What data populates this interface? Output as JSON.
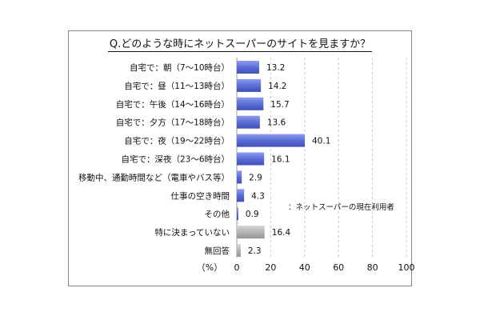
{
  "chart_data": {
    "type": "bar",
    "orientation": "horizontal",
    "title": "Q.どのような時にネットスーパーのサイトを見ますか？",
    "categories": [
      "自宅で：朝（7〜10時台）",
      "自宅で：昼（11〜13時台）",
      "自宅で：午後（14〜16時台）",
      "自宅で：夕方（17〜18時台）",
      "自宅で：夜（19〜22時台）",
      "自宅で：深夜（23〜6時台）",
      "移動中、通勤時間など（電車やバス等）",
      "仕事の空き時間",
      "その他",
      "特に決まっていない",
      "無回答"
    ],
    "values": [
      13.2,
      14.2,
      15.7,
      13.6,
      40.1,
      16.1,
      2.9,
      4.3,
      0.9,
      16.4,
      2.3
    ],
    "value_labels": [
      "13.2",
      "14.2",
      "15.7",
      "13.6",
      "40.1",
      "16.1",
      "2.9",
      "4.3",
      "0.9",
      "16.4",
      "2.3"
    ],
    "bar_group": [
      "user",
      "user",
      "user",
      "user",
      "user",
      "user",
      "user",
      "user",
      "user",
      "other",
      "other"
    ],
    "xlim": [
      0,
      100
    ],
    "xticks": [
      0,
      20,
      40,
      60,
      80,
      100
    ],
    "xtick_labels": [
      "0",
      "20",
      "40",
      "60",
      "80",
      "100"
    ],
    "unit_label": "（%）",
    "annotation": "：ネットスーパーの現在利用者",
    "grid": "vertical dashed",
    "colors": {
      "user": "#5b6ed6",
      "other": "#b3b3b3"
    }
  }
}
